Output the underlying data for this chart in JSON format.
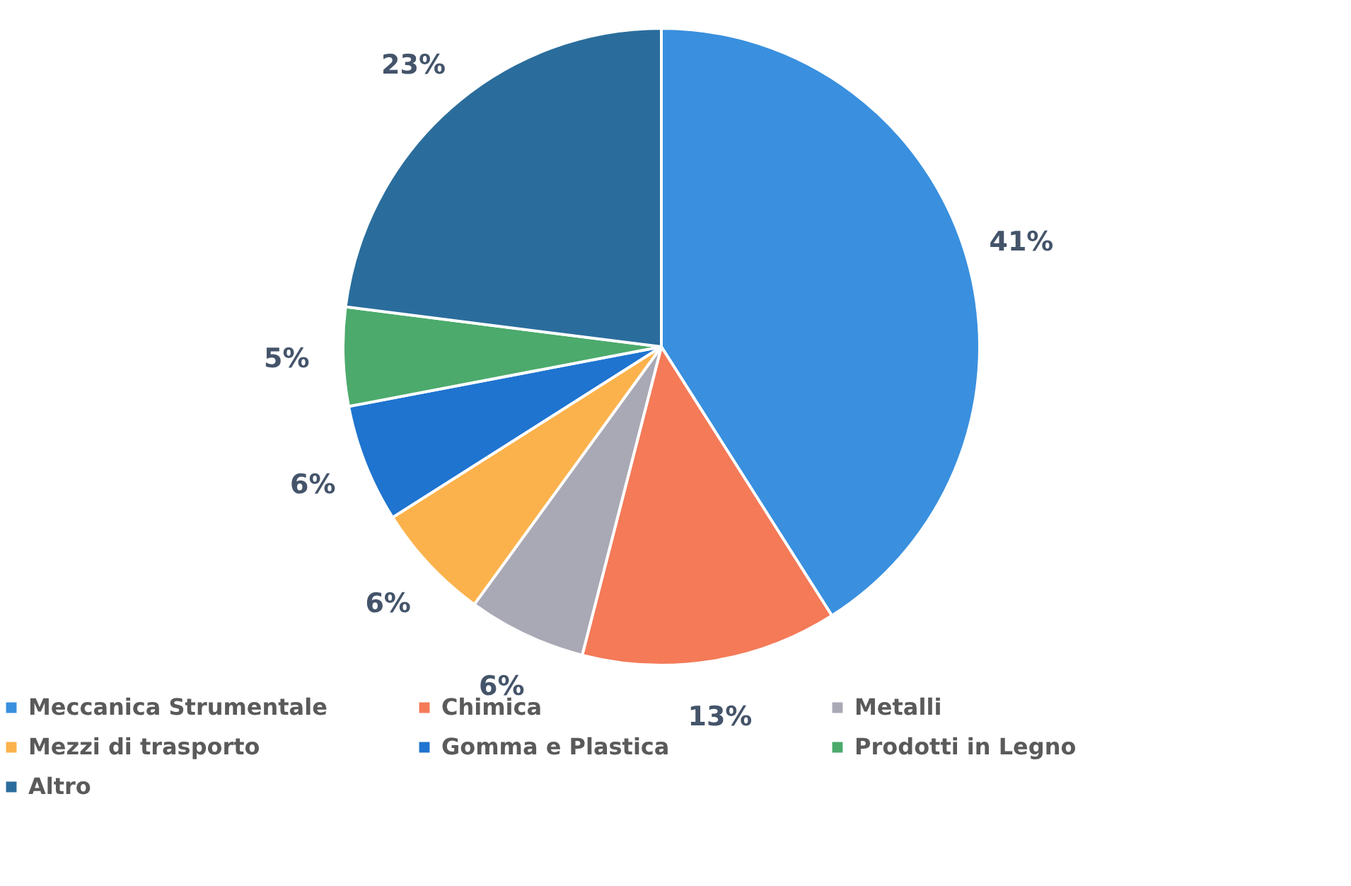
{
  "chart_data": {
    "type": "pie",
    "categories": [
      "Meccanica Strumentale",
      "Chimica",
      "Metalli",
      "Mezzi di trasporto",
      "Gomma e Plastica",
      "Prodotti in Legno",
      "Altro"
    ],
    "values": [
      41,
      13,
      6,
      6,
      6,
      5,
      23
    ],
    "value_labels": [
      "41%",
      "13%",
      "6%",
      "6%",
      "6%",
      "5%",
      "23%"
    ],
    "colors": [
      "#3a90de",
      "#f47a58",
      "#a9a9b6",
      "#fbb24c",
      "#1f74cf",
      "#4caa6c",
      "#2a6d9c"
    ],
    "legend": "bottom"
  }
}
